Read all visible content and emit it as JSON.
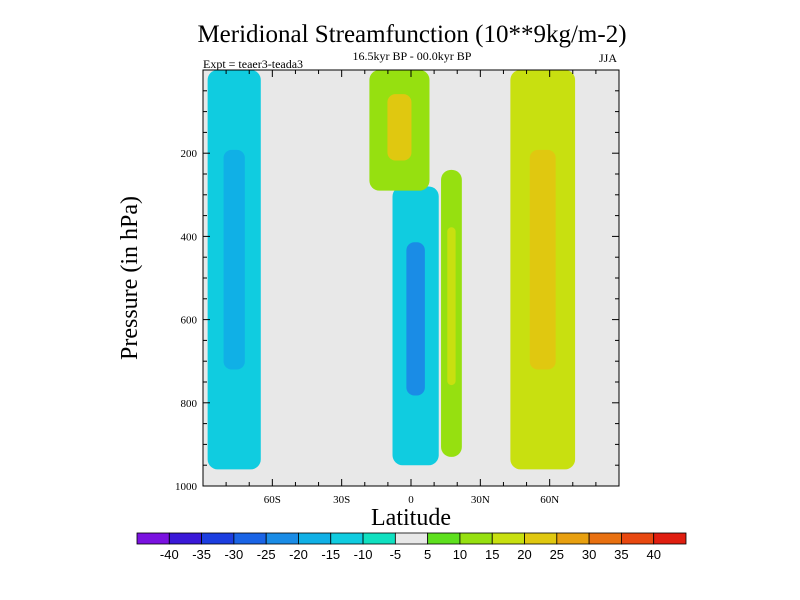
{
  "chart_data": {
    "type": "heatmap",
    "title": "Meridional Streamfunction (10**9kg/m-2)",
    "subtitle": "16.5kyr BP - 00.0kyr BP",
    "experiment": "Expt = teaer3-teada3",
    "season": "JJA",
    "xlabel": "Latitude",
    "ylabel": "Pressure (in hPa)",
    "xlim": [
      -90,
      90
    ],
    "ylim": [
      1000,
      0
    ],
    "x_ticks": [
      {
        "value": -60,
        "label": "60S"
      },
      {
        "value": -30,
        "label": "30S"
      },
      {
        "value": 0,
        "label": "0"
      },
      {
        "value": 30,
        "label": "30N"
      },
      {
        "value": 60,
        "label": "60N"
      }
    ],
    "y_ticks": [
      {
        "value": 200,
        "label": "200"
      },
      {
        "value": 400,
        "label": "400"
      },
      {
        "value": 600,
        "label": "600"
      },
      {
        "value": 800,
        "label": "800"
      },
      {
        "value": 1000,
        "label": "1000"
      }
    ],
    "colorbar": {
      "levels": [
        -40,
        -35,
        -30,
        -25,
        -20,
        -15,
        -10,
        -5,
        5,
        10,
        15,
        20,
        25,
        30,
        35,
        40
      ],
      "labels": [
        "-40",
        "-35",
        "-30",
        "-25",
        "-20",
        "-15",
        "-10",
        "-5",
        "5",
        "10",
        "15",
        "20",
        "25",
        "30",
        "35",
        "40"
      ],
      "colors": [
        "#7a12e0",
        "#3a18d8",
        "#1c3ee0",
        "#1a64e6",
        "#1a8ce6",
        "#10b0e6",
        "#10cce0",
        "#10e0c0",
        "#e8e8e8",
        "#5ee01e",
        "#96e010",
        "#c8e010",
        "#e0c810",
        "#e8a010",
        "#e87010",
        "#e84810",
        "#e01e10"
      ]
    },
    "regions": [
      {
        "name": "southern-polar-cell",
        "lat": [
          -88,
          -65
        ],
        "p": [
          0,
          960
        ],
        "value": -15,
        "core_value": -20
      },
      {
        "name": "equatorial-negative-cell",
        "lat": [
          -8,
          12
        ],
        "p": [
          280,
          950
        ],
        "value": -15,
        "core_value": -25
      },
      {
        "name": "upper-equatorial-positive",
        "lat": [
          -18,
          8
        ],
        "p": [
          0,
          290
        ],
        "value": 10,
        "core_value": 20
      },
      {
        "name": "nh-subtropical-positive",
        "lat": [
          13,
          22
        ],
        "p": [
          240,
          930
        ],
        "value": 10,
        "core_value": 15
      },
      {
        "name": "nh-midlatitude-positive",
        "lat": [
          43,
          71
        ],
        "p": [
          0,
          960
        ],
        "value": 15,
        "core_value": 20
      }
    ]
  }
}
